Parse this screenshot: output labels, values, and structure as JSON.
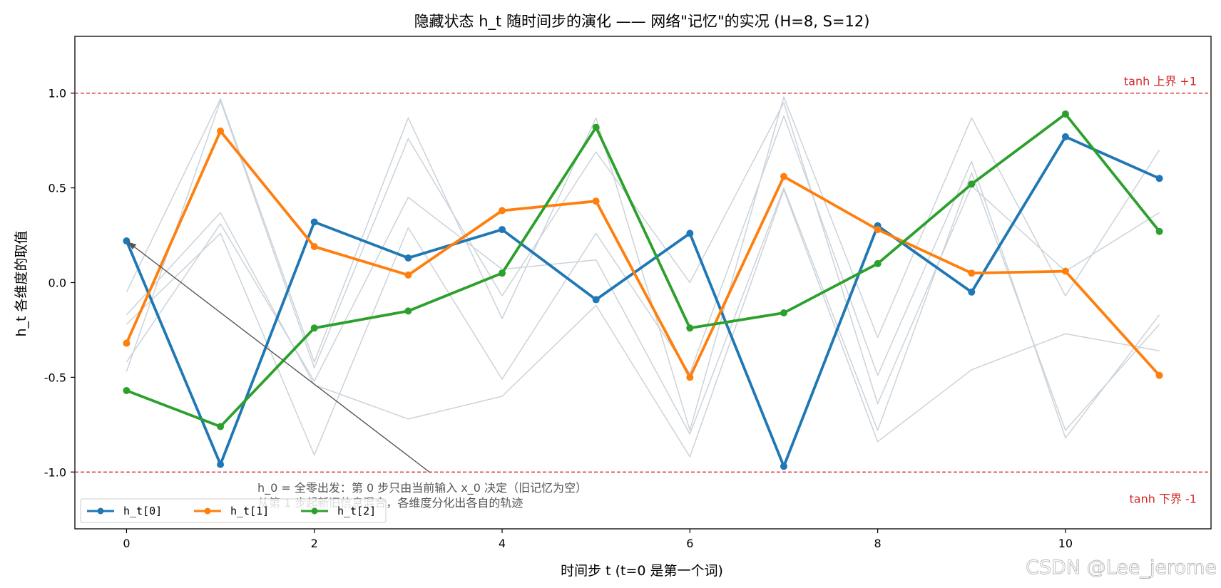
{
  "chart_data": {
    "type": "line",
    "title": "隐藏状态 h_t 随时间步的演化 —— 网络\"记忆\"的实况 (H=8, S=12)",
    "xlabel": "时间步 t (t=0 是第一个词)",
    "ylabel": "h_t 各维度的取值",
    "xlim": [
      -0.55,
      11.55
    ],
    "ylim": [
      -1.3,
      1.3
    ],
    "x": [
      0,
      1,
      2,
      3,
      4,
      5,
      6,
      7,
      8,
      9,
      10,
      11
    ],
    "xticks": [
      0,
      2,
      4,
      6,
      8,
      10
    ],
    "yticks": [
      -1.0,
      -0.5,
      0.0,
      0.5,
      1.0
    ],
    "grid": false,
    "legend_position": "lower-left",
    "series": [
      {
        "name": "h_t[0]",
        "color": "#1f77b4",
        "values": [
          0.22,
          -0.96,
          0.32,
          0.13,
          0.28,
          -0.09,
          0.26,
          -0.97,
          0.3,
          -0.05,
          0.77,
          0.55
        ]
      },
      {
        "name": "h_t[1]",
        "color": "#ff7f0e",
        "values": [
          -0.32,
          0.8,
          0.19,
          0.04,
          0.38,
          0.43,
          -0.5,
          0.56,
          0.28,
          0.05,
          0.06,
          -0.49
        ]
      },
      {
        "name": "h_t[2]",
        "color": "#2ca02c",
        "values": [
          -0.57,
          -0.76,
          -0.24,
          -0.15,
          0.05,
          0.82,
          -0.24,
          -0.16,
          0.1,
          0.52,
          0.89,
          0.27
        ]
      }
    ],
    "background_series_color": "#cbd3da",
    "background_series": [
      [
        -0.05,
        0.97,
        -0.42,
        0.87,
        -0.19,
        0.87,
        -0.78,
        0.98,
        -0.29,
        0.87,
        -0.07,
        0.7
      ],
      [
        -0.17,
        0.37,
        -0.54,
        -0.72,
        -0.6,
        -0.12,
        -0.92,
        0.49,
        -0.84,
        -0.46,
        -0.27,
        -0.36
      ],
      [
        -0.22,
        0.26,
        -0.91,
        0.29,
        -0.51,
        0.26,
        -0.48,
        0.88,
        -0.49,
        0.64,
        -0.82,
        -0.17
      ],
      [
        -0.42,
        0.31,
        -0.52,
        0.45,
        0.07,
        0.12,
        -0.8,
        0.5,
        -0.78,
        0.58,
        -0.78,
        -0.22
      ],
      [
        -0.47,
        0.96,
        -0.45,
        0.76,
        -0.07,
        0.69,
        0.0,
        0.95,
        -0.64,
        0.51,
        0.06,
        0.37
      ]
    ],
    "hlines": [
      {
        "y": 1.0,
        "label": "tanh 上界 +1",
        "color": "#d62728"
      },
      {
        "y": -1.0,
        "label": "tanh 下界 -1",
        "color": "#d62728"
      }
    ],
    "annotation": {
      "text_line1": "h_0 = 全零出发：第 0 步只由当前输入 x_0 决定（旧记忆为空）",
      "text_line2": "从第 1 步起新旧信息混合，各维度分化出各自的轨迹",
      "target": [
        0,
        0.22
      ],
      "color": "#555555"
    },
    "watermark": "CSDN @Lee_jerome"
  }
}
